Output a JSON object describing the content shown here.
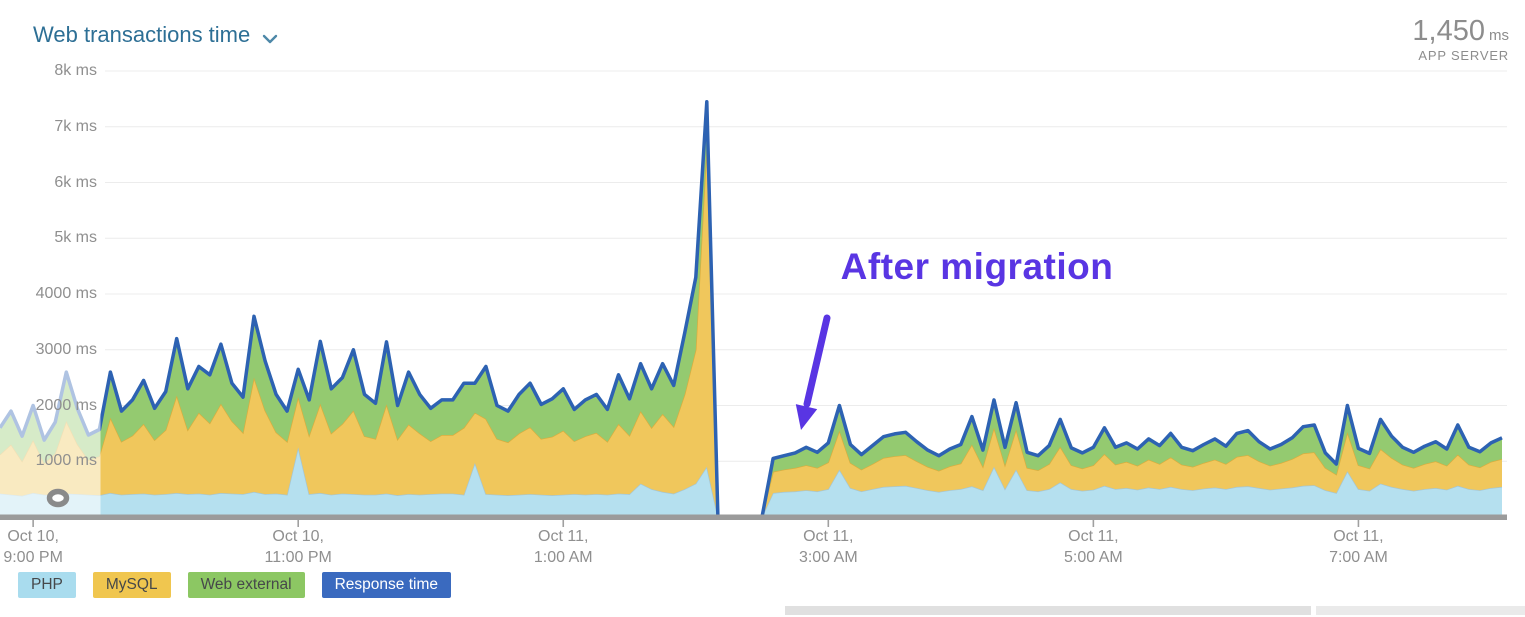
{
  "header": {
    "title": "Web transactions time",
    "metric_value": "1,450",
    "metric_unit": "ms",
    "metric_label": "APP SERVER"
  },
  "chart_data": {
    "type": "area",
    "stacked": true,
    "unit": "ms",
    "title": "Web transactions time",
    "ylim": [
      0,
      8000
    ],
    "grid": true,
    "legend_position": "bottom-left",
    "x_start": "Oct 10, 8:45 PM",
    "x_end": "Oct 11, 8:05 AM",
    "x_interval_minutes": 5,
    "y_tick_values": [
      8000,
      7000,
      6000,
      5000,
      4000,
      3000,
      2000,
      1000
    ],
    "y_tick_labels": [
      "8k ms",
      "7k ms",
      "6k ms",
      "5k ms",
      "4000 ms",
      "3000 ms",
      "2000 ms",
      "1000 ms"
    ],
    "x_ticks": [
      {
        "index": 3,
        "line1": "Oct 10,",
        "line2": "9:00 PM"
      },
      {
        "index": 27,
        "line1": "Oct 10,",
        "line2": "11:00 PM"
      },
      {
        "index": 51,
        "line1": "Oct 11,",
        "line2": "1:00 AM"
      },
      {
        "index": 75,
        "line1": "Oct 11,",
        "line2": "3:00 AM"
      },
      {
        "index": 99,
        "line1": "Oct 11,",
        "line2": "5:00 AM"
      },
      {
        "index": 123,
        "line1": "Oct 11,",
        "line2": "7:00 AM"
      }
    ],
    "series": [
      {
        "name": "PHP",
        "fill": "#b5e0ef",
        "edge": "#a5c6d3",
        "chip_bg": "#a9dcee",
        "chip_text": "#46484a",
        "values": [
          420,
          400,
          380,
          430,
          400,
          390,
          420,
          410,
          400,
          390,
          430,
          400,
          410,
          420,
          400,
          410,
          430,
          410,
          420,
          400,
          430,
          420,
          410,
          450,
          410,
          420,
          400,
          1250,
          410,
          430,
          400,
          420,
          410,
          400,
          400,
          420,
          390,
          410,
          400,
          410,
          420,
          420,
          400,
          970,
          410,
          400,
          390,
          400,
          410,
          400,
          390,
          400,
          410,
          400,
          410,
          400,
          420,
          410,
          600,
          500,
          450,
          420,
          500,
          600,
          900,
          0,
          0,
          0,
          0,
          0,
          430,
          450,
          460,
          480,
          460,
          500,
          850,
          520,
          460,
          500,
          540,
          550,
          560,
          520,
          480,
          450,
          480,
          500,
          550,
          480,
          900,
          500,
          850,
          480,
          460,
          500,
          620,
          500,
          470,
          490,
          560,
          500,
          520,
          490,
          530,
          500,
          540,
          500,
          480,
          510,
          530,
          500,
          540,
          550,
          520,
          490,
          510,
          530,
          560,
          570,
          480,
          430,
          820,
          500,
          470,
          600,
          540,
          500,
          470,
          500,
          520,
          490,
          560,
          500,
          480,
          520,
          540
        ]
      },
      {
        "name": "MySQL",
        "fill": "#f0c75c",
        "edge": "#d9ad3e",
        "chip_bg": "#f0c64f",
        "chip_text": "#46484a",
        "values": [
          700,
          900,
          620,
          950,
          560,
          750,
          1300,
          900,
          620,
          700,
          1350,
          950,
          1050,
          1250,
          980,
          1150,
          1750,
          1150,
          1450,
          1280,
          1600,
          1300,
          1100,
          2050,
          1500,
          1100,
          950,
          900,
          1050,
          1600,
          1100,
          1250,
          1500,
          1050,
          1000,
          1600,
          1000,
          1250,
          1100,
          950,
          1050,
          1050,
          1200,
          900,
          1350,
          1000,
          950,
          1100,
          1200,
          1000,
          1050,
          1150,
          950,
          1050,
          1100,
          950,
          1250,
          1050,
          1300,
          1100,
          1400,
          1200,
          1700,
          2400,
          5800,
          0,
          0,
          0,
          0,
          0,
          380,
          400,
          420,
          450,
          420,
          480,
          700,
          450,
          390,
          450,
          520,
          540,
          550,
          480,
          420,
          380,
          430,
          460,
          750,
          420,
          700,
          430,
          720,
          400,
          380,
          450,
          640,
          430,
          400,
          440,
          570,
          440,
          470,
          430,
          500,
          450,
          530,
          440,
          420,
          460,
          500,
          450,
          540,
          560,
          480,
          430,
          460,
          510,
          580,
          590,
          400,
          330,
          700,
          430,
          400,
          620,
          520,
          440,
          410,
          450,
          480,
          430,
          560,
          440,
          410,
          470,
          500
        ]
      },
      {
        "name": "Web external",
        "fill": "#94ca70",
        "edge": "#76b152",
        "chip_bg": "#8cc763",
        "chip_text": "#46484a",
        "values": [
          480,
          600,
          450,
          620,
          420,
          560,
          880,
          640,
          450,
          480,
          820,
          550,
          640,
          780,
          570,
          690,
          1020,
          740,
          830,
          870,
          1070,
          680,
          640,
          1100,
          890,
          680,
          550,
          500,
          640,
          1120,
          800,
          830,
          1090,
          750,
          640,
          1120,
          610,
          940,
          700,
          590,
          630,
          630,
          800,
          530,
          940,
          600,
          560,
          700,
          790,
          620,
          680,
          750,
          570,
          650,
          690,
          580,
          880,
          660,
          850,
          700,
          900,
          740,
          1100,
          1300,
          750,
          0,
          0,
          0,
          0,
          0,
          240,
          250,
          270,
          320,
          280,
          350,
          450,
          330,
          270,
          330,
          380,
          400,
          410,
          350,
          300,
          270,
          310,
          340,
          500,
          300,
          500,
          320,
          480,
          280,
          260,
          330,
          490,
          310,
          280,
          320,
          470,
          310,
          340,
          300,
          370,
          330,
          430,
          310,
          290,
          330,
          370,
          320,
          420,
          440,
          350,
          300,
          330,
          380,
          480,
          490,
          270,
          190,
          480,
          300,
          270,
          530,
          390,
          310,
          280,
          320,
          350,
          300,
          530,
          310,
          280,
          340,
          380
        ]
      }
    ],
    "line_series": {
      "name": "Response time",
      "color": "#2d62b2",
      "chip_bg": "#3a6abf",
      "chip_text": "#ffffff",
      "note": "line equals sum of the three stacked series at each point"
    },
    "annotation": {
      "label": "After migration",
      "color": "#5935e3"
    },
    "faded_region": {
      "start_index": 0,
      "end_index": 9
    },
    "spike": {
      "index": 64,
      "total_ms": 7450
    },
    "gap_zero_indices": [
      65,
      66,
      67,
      68,
      69
    ]
  },
  "colors": {
    "title": "#2d6f95",
    "grid": "#ececec",
    "axis_bar": "#9b9b9b",
    "axis_text": "#8f8f8f",
    "annotation": "#5935e3"
  }
}
